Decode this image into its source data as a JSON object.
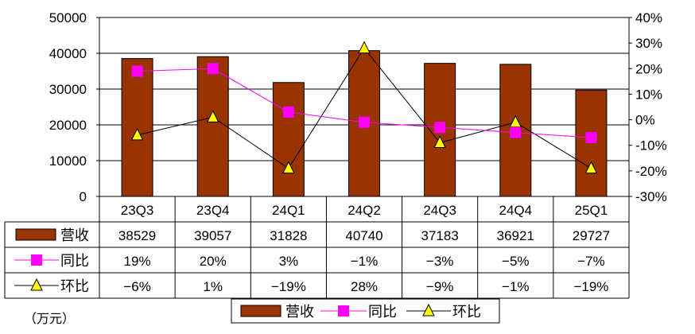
{
  "chart_data": {
    "type": "bar+line",
    "categories": [
      "23Q3",
      "23Q4",
      "24Q1",
      "24Q2",
      "24Q3",
      "24Q4",
      "25Q1"
    ],
    "series": [
      {
        "name": "营收",
        "kind": "bar",
        "axis": "left",
        "values": [
          38529,
          39057,
          31828,
          40740,
          37183,
          36921,
          29727
        ],
        "labels": [
          "38529",
          "39057",
          "31828",
          "40740",
          "37183",
          "36921",
          "29727"
        ]
      },
      {
        "name": "同比",
        "kind": "line",
        "axis": "right",
        "marker": "square",
        "values": [
          19,
          20,
          3,
          -1,
          -3,
          -5,
          -7
        ],
        "labels": [
          "19%",
          "20%",
          "3%",
          "−1%",
          "−3%",
          "−5%",
          "−7%"
        ]
      },
      {
        "name": "环比",
        "kind": "line",
        "axis": "right",
        "marker": "triangle",
        "values": [
          -6,
          1,
          -19,
          28,
          -9,
          -1,
          -19
        ],
        "labels": [
          "−6%",
          "1%",
          "−19%",
          "28%",
          "−9%",
          "−1%",
          "−19%"
        ]
      }
    ],
    "left_axis": {
      "min": 0,
      "max": 50000,
      "ticks": [
        0,
        10000,
        20000,
        30000,
        40000,
        50000
      ],
      "tick_labels": [
        "0",
        "10000",
        "20000",
        "30000",
        "40000",
        "50000"
      ]
    },
    "right_axis": {
      "min": -30,
      "max": 40,
      "ticks": [
        -30,
        -20,
        -10,
        0,
        10,
        20,
        30,
        40
      ],
      "tick_labels": [
        "-30%",
        "-20%",
        "-10%",
        "0%",
        "10%",
        "20%",
        "30%",
        "40%"
      ]
    },
    "grid": true,
    "legend_position": "bottom",
    "data_table": true,
    "unit": "（万元）",
    "colors": {
      "bar": "#993300",
      "yoy": "#ff00ff",
      "qoq_line": "#000000",
      "qoq_marker": "#ffff00",
      "grid": "#000000"
    }
  }
}
